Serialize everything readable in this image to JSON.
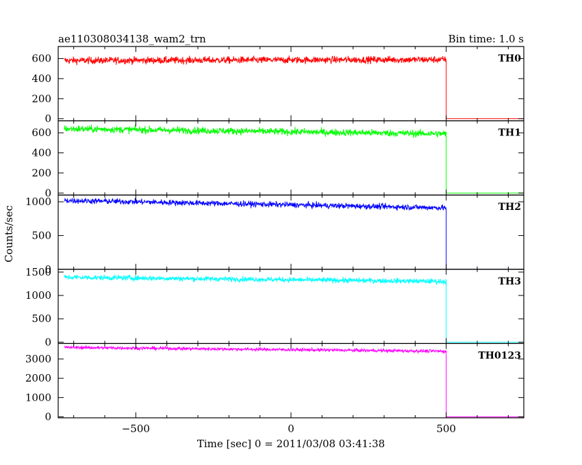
{
  "chart_data": {
    "type": "line",
    "title": "ae110308034138_wam2_trn",
    "subtitle": "Bin time: 1.0 s",
    "xlabel": "Time [sec] 0 = 2011/03/08 03:41:38",
    "ylabel": "Counts/sec",
    "xlim": [
      -750,
      750
    ],
    "xticks": [
      -500,
      0,
      500
    ],
    "xtick_labels": [
      "−500",
      "0",
      "500"
    ],
    "cutoff_x": 500,
    "grid": false,
    "legend": "none",
    "panels": [
      {
        "name": "TH0",
        "color": "#ff0000",
        "ylim": [
          -20,
          720
        ],
        "yticks": [
          0,
          200,
          400,
          600
        ],
        "ytick_labels": [
          "0",
          "200",
          "400",
          "600"
        ],
        "level_start": 580,
        "level_end": 590,
        "noise": 25,
        "level_after": 0
      },
      {
        "name": "TH1",
        "color": "#00ff00",
        "ylim": [
          -20,
          720
        ],
        "yticks": [
          0,
          200,
          400,
          600
        ],
        "ytick_labels": [
          "0",
          "200",
          "400",
          "600"
        ],
        "level_start": 640,
        "level_end": 590,
        "noise": 25,
        "level_after": 0
      },
      {
        "name": "TH2",
        "color": "#0000ff",
        "ylim": [
          0,
          1100
        ],
        "yticks": [
          0,
          500,
          1000
        ],
        "ytick_labels": [
          "0",
          "500",
          "1000"
        ],
        "level_start": 1020,
        "level_end": 910,
        "noise": 30,
        "level_after": 0
      },
      {
        "name": "TH3",
        "color": "#00ffff",
        "ylim": [
          -30,
          1560
        ],
        "yticks": [
          0,
          500,
          1000,
          1500
        ],
        "ytick_labels": [
          "0",
          "500",
          "1000",
          "1500"
        ],
        "level_start": 1390,
        "level_end": 1300,
        "noise": 40,
        "level_after": 0
      },
      {
        "name": "TH0123",
        "color": "#ff00ff",
        "ylim": [
          -50,
          3800
        ],
        "yticks": [
          0,
          1000,
          2000,
          3000
        ],
        "ytick_labels": [
          "0",
          "1000",
          "2000",
          "3000"
        ],
        "level_start": 3600,
        "level_end": 3400,
        "noise": 60,
        "level_after": 0
      }
    ]
  }
}
